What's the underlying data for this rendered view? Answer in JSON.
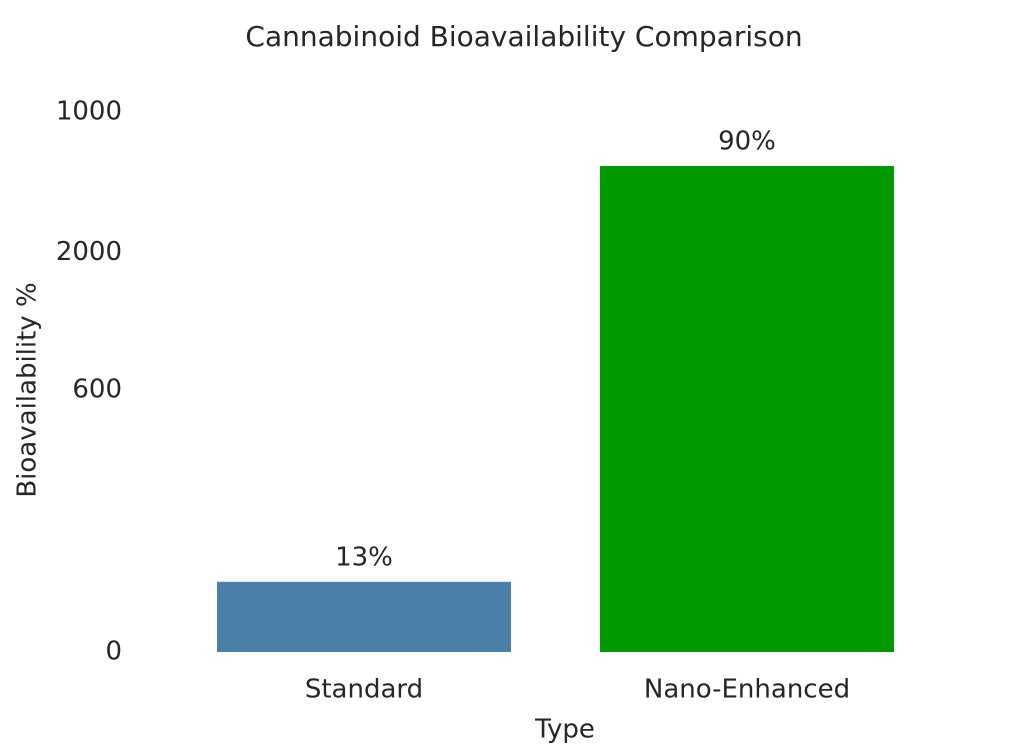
{
  "chart_data": {
    "type": "bar",
    "title": "Cannabinoid Bioavailability Comparison",
    "xlabel": "Type",
    "ylabel": "Bioavailability %",
    "categories": [
      "Standard",
      "Nano-Enhanced"
    ],
    "values": [
      13,
      90
    ],
    "value_labels": [
      "13%",
      "90%"
    ],
    "colors": [
      "#4a80a8",
      "#009a00"
    ],
    "ylim": [
      0,
      100
    ],
    "yticks": [
      {
        "value": 100,
        "label": "1000"
      },
      {
        "value": 74,
        "label": "2000"
      },
      {
        "value": 48.5,
        "label": "600"
      },
      0
    ],
    "grid": false
  }
}
